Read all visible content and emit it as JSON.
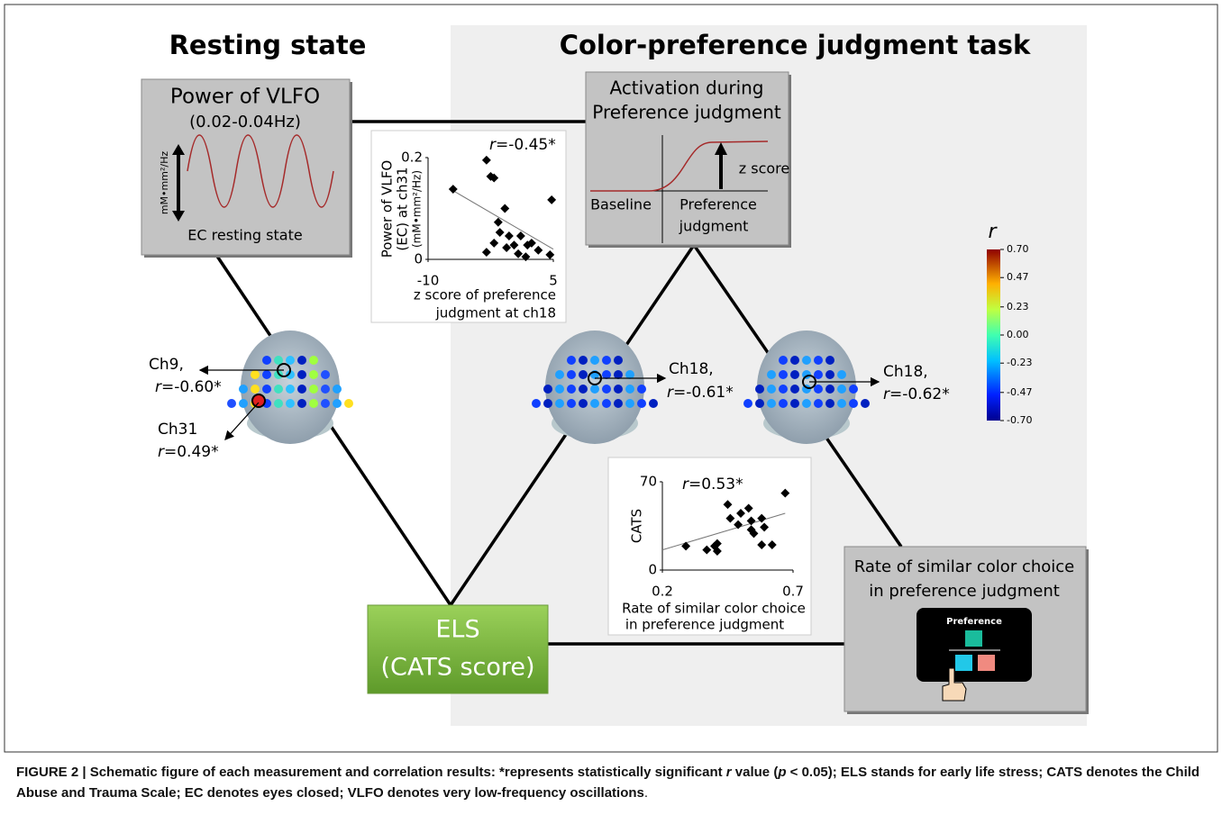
{
  "headings": {
    "resting": "Resting state",
    "task": "Color-preference judgment task"
  },
  "vlfo_box": {
    "title": "Power of VLFO",
    "band": "(0.02-0.04Hz)",
    "unit": "mM•mm²/Hz",
    "caption": "EC resting state"
  },
  "activation_box": {
    "title_lines": [
      "Activation during",
      "Preference judgment"
    ],
    "z": "z score",
    "baseline": "Baseline",
    "phase_lines": [
      "Preference",
      "judgment"
    ]
  },
  "els_box": {
    "lines": [
      "ELS",
      "(CATS score)"
    ]
  },
  "rate_box": {
    "lines": [
      "Rate of similar color choice",
      "in preference judgment"
    ],
    "screen": "Preference"
  },
  "brain_labels": [
    {
      "ch": "Ch9,",
      "r": "r",
      "val": "=-0.60*"
    },
    {
      "ch": "Ch31",
      "r": "r",
      "val": "=0.49*"
    },
    {
      "ch": "Ch18,",
      "r": "r",
      "val": "=-0.61*"
    },
    {
      "ch": "Ch18,",
      "r": "r",
      "val": "=-0.62*"
    }
  ],
  "scatter_vlfo": {
    "type": "scatter",
    "r": "r",
    "r_value": "=-0.45*",
    "y_label_lines": [
      "Power of VLFO",
      "(EC) at ch31",
      "(mM•mm²/Hz)"
    ],
    "x_label_lines": [
      "z score of preference",
      "judgment at ch18"
    ],
    "xlim": [
      -10,
      5
    ],
    "ylim": [
      0,
      0.2
    ],
    "xticks": [
      -10,
      5
    ],
    "yticks": [
      0,
      0.2
    ],
    "x": [
      -7,
      -3,
      -2.5,
      -2.1,
      -1.6,
      -1.4,
      -0.8,
      -0.6,
      -0.3,
      0.3,
      0.8,
      1.1,
      1.7,
      1.9,
      2.4,
      3.2,
      4.6,
      4.8,
      -3,
      -2.1
    ],
    "y": [
      0.138,
      0.195,
      0.163,
      0.16,
      0.073,
      0.053,
      0.1,
      0.023,
      0.046,
      0.028,
      0.011,
      0.046,
      0.005,
      0.028,
      0.032,
      0.018,
      0.009,
      0.117,
      0.014,
      0.032
    ],
    "fit": {
      "x": [
        -7,
        5
      ],
      "y": [
        0.135,
        0.02
      ]
    }
  },
  "scatter_cats": {
    "type": "scatter",
    "r": "r",
    "r_value": "=0.53*",
    "y_label_lines": [
      "CATS"
    ],
    "x_label_lines": [
      "Rate of similar color choice",
      "in preference judgment"
    ],
    "xlim": [
      0.2,
      0.7
    ],
    "ylim": [
      0,
      70
    ],
    "xticks": [
      0.2,
      0.7
    ],
    "yticks": [
      0,
      70
    ],
    "x": [
      0.29,
      0.37,
      0.41,
      0.41,
      0.45,
      0.46,
      0.49,
      0.5,
      0.53,
      0.54,
      0.55,
      0.54,
      0.58,
      0.59,
      0.62,
      0.67,
      0.58,
      0.4
    ],
    "y": [
      19,
      16,
      21,
      15,
      52,
      41,
      36,
      45,
      49,
      32,
      29,
      39,
      20,
      34,
      20,
      61,
      41,
      19
    ],
    "fit": {
      "x": [
        0.2,
        0.67
      ],
      "y": [
        16,
        45
      ]
    }
  },
  "colorbar": {
    "label": "r",
    "lim": [
      -0.7,
      0.7
    ],
    "ticks": [
      {
        "value": 0.7,
        "label": "0.70"
      },
      0.47,
      0.23,
      {
        "value": 0,
        "label": "0.00"
      },
      -0.23,
      -0.47,
      {
        "value": -0.7,
        "label": "-0.70"
      }
    ]
  },
  "caption": {
    "bold": "FIGURE 2 | Schematic figure of each measurement and correlation results: *represents statistically significant ",
    "r": "r",
    "bold2": " value (",
    "p": "p",
    "bold3": " < 0.05); ELS stands for early life stress; CATS denotes the Child Abuse and Trauma Scale; EC denotes eyes closed; VLFO denotes very low-frequency oscillations",
    "end": "."
  }
}
